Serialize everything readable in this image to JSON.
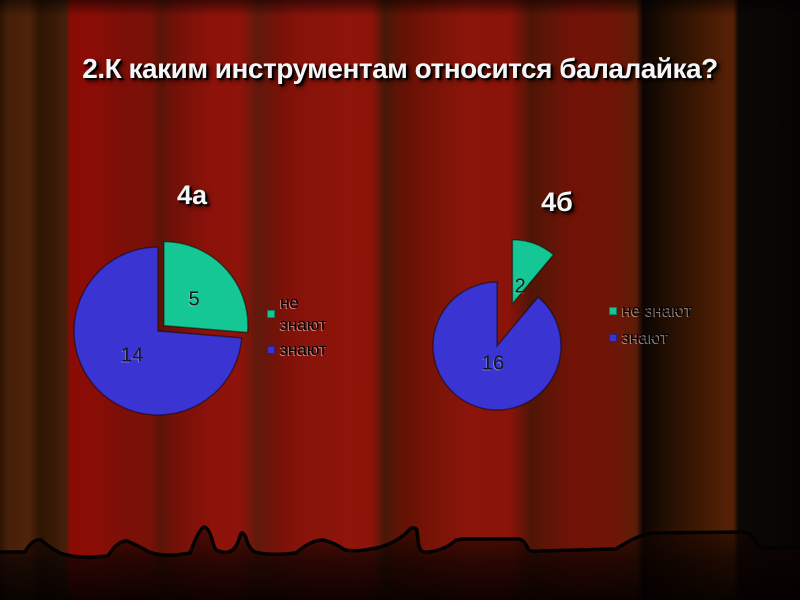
{
  "slide": {
    "title": "2.К каким инструментам относится балалайка?",
    "background_colors": {
      "curtain_red": "#8e130a",
      "curtain_shadow": "#0b0705",
      "floor_black": "#060200"
    }
  },
  "chart_data": [
    {
      "type": "pie",
      "title": "4а",
      "categories": [
        "не знают",
        "знают"
      ],
      "values": [
        5,
        14
      ],
      "data_labels": [
        "5",
        "14"
      ],
      "colors": [
        "#14c795",
        "#3a35d2"
      ],
      "legend": {
        "position": "right",
        "labels": [
          "не знают",
          "знают"
        ]
      },
      "start_angle_deg": 0,
      "direction": "clockwise",
      "exploded_slice": "не знают"
    },
    {
      "type": "pie",
      "title": "4б",
      "categories": [
        "не знают",
        "знают"
      ],
      "values": [
        2,
        16
      ],
      "data_labels": [
        "2",
        "16"
      ],
      "colors": [
        "#14c795",
        "#3a35d2"
      ],
      "legend": {
        "position": "right",
        "labels": [
          "не знают",
          "знают"
        ]
      },
      "start_angle_deg": 0,
      "direction": "clockwise",
      "exploded_slice": "не знают"
    }
  ]
}
